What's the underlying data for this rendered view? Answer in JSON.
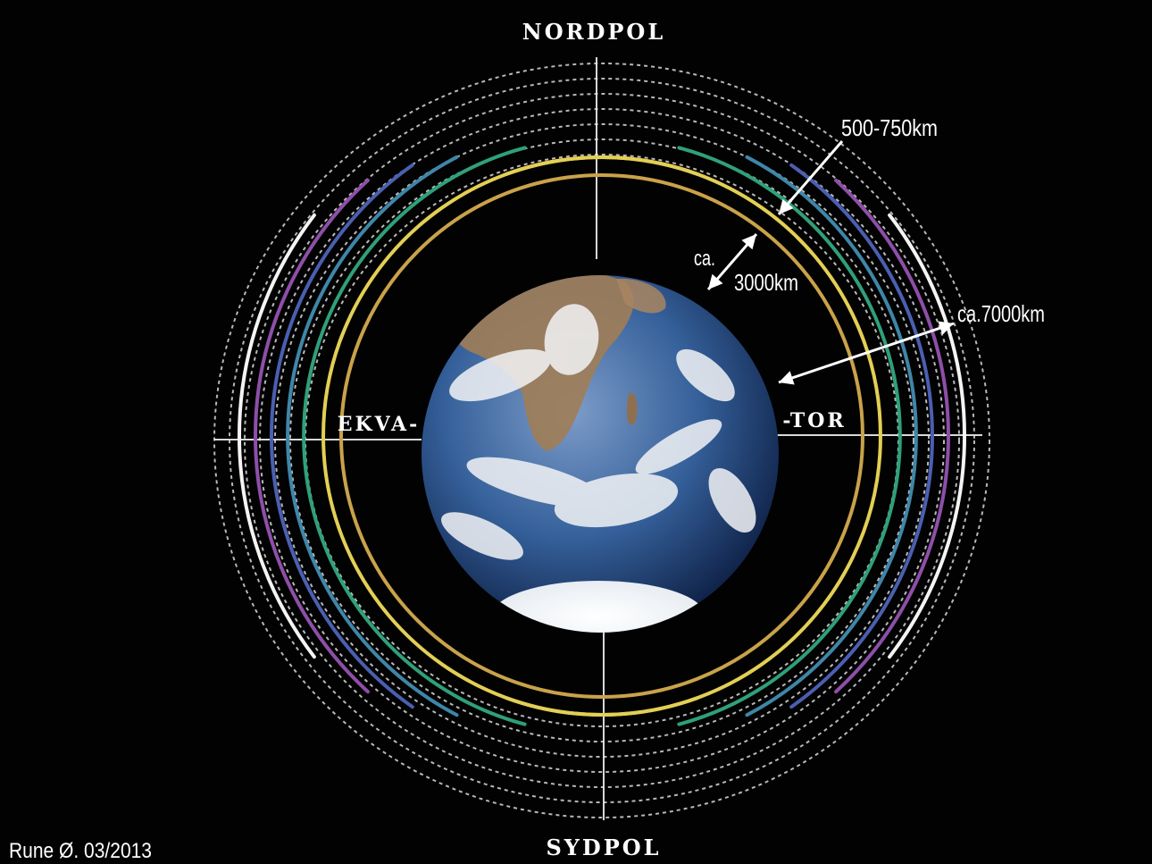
{
  "labels": {
    "north": "NORDPOL",
    "south": "SYDPOL",
    "equator_left": "EKVA-",
    "equator_right": "-TOR",
    "dist_belt_width": "500-750km",
    "dist_ca": "ca.",
    "dist_inner": "3000km",
    "dist_outer": "ca.7000km",
    "credit": "Rune Ø. 03/2013"
  },
  "colors": {
    "background": "#020202",
    "axis": "#d8d8d8",
    "belt_gold": "#c9a24a",
    "belt_yellow": "#e3cf55",
    "belt_green": "#2fa07a",
    "belt_teal": "#3f86a8",
    "belt_blue": "#4a5fb0",
    "belt_purple": "#8d4fa8",
    "belt_white": "#f4f4f4",
    "dotted": "#e6e6e6",
    "ocean": "#2a4f8a",
    "cloud": "#f2f4f6",
    "land": "#9b7a55"
  },
  "belts": [
    {
      "color_key": "belt_gold",
      "name": "inner-gold"
    },
    {
      "color_key": "belt_yellow",
      "name": "yellow"
    },
    {
      "color_key": "belt_green",
      "name": "green"
    },
    {
      "color_key": "belt_teal",
      "name": "teal"
    },
    {
      "color_key": "belt_blue",
      "name": "blue"
    },
    {
      "color_key": "belt_purple",
      "name": "purple"
    },
    {
      "color_key": "belt_white",
      "name": "white"
    }
  ]
}
